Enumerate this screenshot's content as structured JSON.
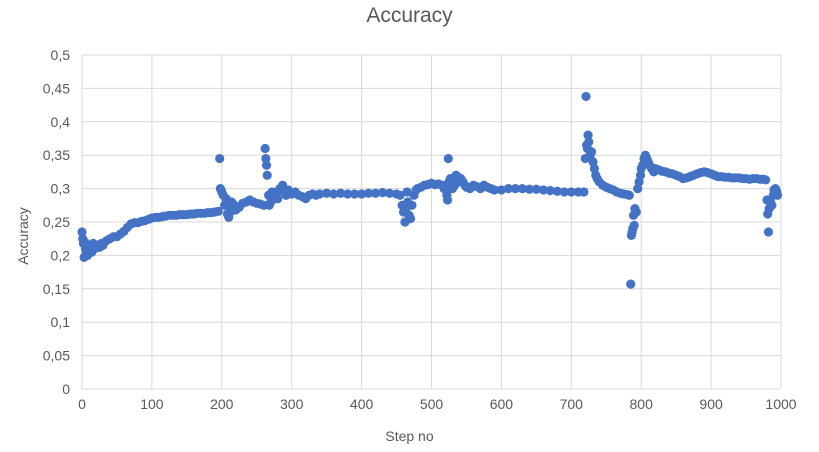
{
  "chart_data": {
    "type": "scatter",
    "title": "Accuracy",
    "xlabel": "Step no",
    "ylabel": "Accuracy",
    "xlim": [
      0,
      1000
    ],
    "ylim": [
      0,
      0.5
    ],
    "x_ticks": [
      "0",
      "100",
      "200",
      "300",
      "400",
      "500",
      "600",
      "700",
      "800",
      "900",
      "1000"
    ],
    "y_ticks": [
      "0",
      "0,05",
      "0,1",
      "0,15",
      "0,2",
      "0,25",
      "0,3",
      "0,35",
      "0,4",
      "0,45",
      "0,5"
    ],
    "grid": true,
    "legend": "none",
    "series": [
      {
        "color": "#4472C4",
        "points": [
          [
            0,
            0.235
          ],
          [
            1,
            0.225
          ],
          [
            2,
            0.218
          ],
          [
            3,
            0.197
          ],
          [
            4,
            0.22
          ],
          [
            5,
            0.21
          ],
          [
            6,
            0.205
          ],
          [
            7,
            0.215
          ],
          [
            8,
            0.2
          ],
          [
            9,
            0.212
          ],
          [
            10,
            0.208
          ],
          [
            12,
            0.215
          ],
          [
            14,
            0.205
          ],
          [
            16,
            0.218
          ],
          [
            18,
            0.21
          ],
          [
            20,
            0.212
          ],
          [
            22,
            0.215
          ],
          [
            25,
            0.212
          ],
          [
            28,
            0.218
          ],
          [
            30,
            0.215
          ],
          [
            35,
            0.222
          ],
          [
            40,
            0.225
          ],
          [
            45,
            0.228
          ],
          [
            50,
            0.228
          ],
          [
            55,
            0.232
          ],
          [
            60,
            0.236
          ],
          [
            65,
            0.242
          ],
          [
            70,
            0.247
          ],
          [
            75,
            0.249
          ],
          [
            80,
            0.249
          ],
          [
            85,
            0.251
          ],
          [
            90,
            0.252
          ],
          [
            95,
            0.254
          ],
          [
            100,
            0.256
          ],
          [
            105,
            0.257
          ],
          [
            110,
            0.257
          ],
          [
            115,
            0.258
          ],
          [
            120,
            0.259
          ],
          [
            125,
            0.26
          ],
          [
            130,
            0.26
          ],
          [
            135,
            0.26
          ],
          [
            140,
            0.261
          ],
          [
            145,
            0.261
          ],
          [
            150,
            0.261
          ],
          [
            155,
            0.262
          ],
          [
            160,
            0.262
          ],
          [
            165,
            0.263
          ],
          [
            170,
            0.263
          ],
          [
            175,
            0.263
          ],
          [
            180,
            0.264
          ],
          [
            185,
            0.264
          ],
          [
            190,
            0.265
          ],
          [
            195,
            0.266
          ],
          [
            197,
            0.345
          ],
          [
            198,
            0.3
          ],
          [
            200,
            0.295
          ],
          [
            202,
            0.29
          ],
          [
            204,
            0.275
          ],
          [
            206,
            0.285
          ],
          [
            208,
            0.262
          ],
          [
            210,
            0.257
          ],
          [
            212,
            0.265
          ],
          [
            214,
            0.28
          ],
          [
            216,
            0.27
          ],
          [
            218,
            0.275
          ],
          [
            220,
            0.268
          ],
          [
            225,
            0.272
          ],
          [
            230,
            0.278
          ],
          [
            235,
            0.28
          ],
          [
            240,
            0.283
          ],
          [
            245,
            0.28
          ],
          [
            250,
            0.278
          ],
          [
            255,
            0.277
          ],
          [
            260,
            0.275
          ],
          [
            262,
            0.36
          ],
          [
            263,
            0.345
          ],
          [
            264,
            0.335
          ],
          [
            265,
            0.32
          ],
          [
            267,
            0.29
          ],
          [
            268,
            0.275
          ],
          [
            270,
            0.28
          ],
          [
            272,
            0.295
          ],
          [
            275,
            0.285
          ],
          [
            278,
            0.29
          ],
          [
            280,
            0.285
          ],
          [
            283,
            0.3
          ],
          [
            285,
            0.298
          ],
          [
            287,
            0.305
          ],
          [
            290,
            0.295
          ],
          [
            292,
            0.29
          ],
          [
            295,
            0.298
          ],
          [
            300,
            0.292
          ],
          [
            305,
            0.295
          ],
          [
            310,
            0.29
          ],
          [
            315,
            0.288
          ],
          [
            320,
            0.285
          ],
          [
            325,
            0.29
          ],
          [
            330,
            0.292
          ],
          [
            335,
            0.29
          ],
          [
            340,
            0.292
          ],
          [
            350,
            0.293
          ],
          [
            360,
            0.292
          ],
          [
            370,
            0.293
          ],
          [
            380,
            0.292
          ],
          [
            390,
            0.292
          ],
          [
            400,
            0.292
          ],
          [
            410,
            0.293
          ],
          [
            420,
            0.293
          ],
          [
            430,
            0.294
          ],
          [
            440,
            0.293
          ],
          [
            450,
            0.292
          ],
          [
            455,
            0.29
          ],
          [
            458,
            0.275
          ],
          [
            460,
            0.265
          ],
          [
            462,
            0.25
          ],
          [
            463,
            0.27
          ],
          [
            465,
            0.295
          ],
          [
            466,
            0.28
          ],
          [
            468,
            0.26
          ],
          [
            470,
            0.255
          ],
          [
            472,
            0.275
          ],
          [
            475,
            0.29
          ],
          [
            478,
            0.298
          ],
          [
            480,
            0.3
          ],
          [
            485,
            0.302
          ],
          [
            490,
            0.305
          ],
          [
            495,
            0.306
          ],
          [
            500,
            0.308
          ],
          [
            505,
            0.306
          ],
          [
            510,
            0.307
          ],
          [
            515,
            0.305
          ],
          [
            518,
            0.3
          ],
          [
            520,
            0.3
          ],
          [
            522,
            0.29
          ],
          [
            523,
            0.283
          ],
          [
            524,
            0.345
          ],
          [
            525,
            0.31
          ],
          [
            527,
            0.315
          ],
          [
            530,
            0.3
          ],
          [
            533,
            0.305
          ],
          [
            535,
            0.32
          ],
          [
            537,
            0.318
          ],
          [
            540,
            0.31
          ],
          [
            542,
            0.315
          ],
          [
            545,
            0.31
          ],
          [
            548,
            0.305
          ],
          [
            550,
            0.302
          ],
          [
            555,
            0.3
          ],
          [
            560,
            0.305
          ],
          [
            565,
            0.303
          ],
          [
            570,
            0.3
          ],
          [
            575,
            0.305
          ],
          [
            580,
            0.302
          ],
          [
            585,
            0.3
          ],
          [
            590,
            0.298
          ],
          [
            600,
            0.298
          ],
          [
            610,
            0.3
          ],
          [
            620,
            0.3
          ],
          [
            630,
            0.3
          ],
          [
            640,
            0.299
          ],
          [
            650,
            0.299
          ],
          [
            660,
            0.298
          ],
          [
            670,
            0.297
          ],
          [
            680,
            0.296
          ],
          [
            690,
            0.295
          ],
          [
            700,
            0.295
          ],
          [
            710,
            0.295
          ],
          [
            718,
            0.295
          ],
          [
            720,
            0.345
          ],
          [
            721,
            0.438
          ],
          [
            722,
            0.365
          ],
          [
            723,
            0.36
          ],
          [
            724,
            0.38
          ],
          [
            725,
            0.37
          ],
          [
            727,
            0.35
          ],
          [
            729,
            0.355
          ],
          [
            731,
            0.34
          ],
          [
            733,
            0.33
          ],
          [
            735,
            0.32
          ],
          [
            737,
            0.315
          ],
          [
            740,
            0.31
          ],
          [
            745,
            0.305
          ],
          [
            750,
            0.302
          ],
          [
            755,
            0.3
          ],
          [
            760,
            0.298
          ],
          [
            765,
            0.295
          ],
          [
            770,
            0.293
          ],
          [
            775,
            0.292
          ],
          [
            780,
            0.291
          ],
          [
            783,
            0.29
          ],
          [
            785,
            0.157
          ],
          [
            786,
            0.23
          ],
          [
            787,
            0.235
          ],
          [
            788,
            0.24
          ],
          [
            789,
            0.26
          ],
          [
            790,
            0.245
          ],
          [
            791,
            0.27
          ],
          [
            793,
            0.265
          ],
          [
            795,
            0.3
          ],
          [
            797,
            0.31
          ],
          [
            799,
            0.32
          ],
          [
            800,
            0.33
          ],
          [
            802,
            0.335
          ],
          [
            804,
            0.345
          ],
          [
            806,
            0.35
          ],
          [
            808,
            0.345
          ],
          [
            810,
            0.34
          ],
          [
            812,
            0.335
          ],
          [
            815,
            0.33
          ],
          [
            818,
            0.325
          ],
          [
            820,
            0.33
          ],
          [
            825,
            0.328
          ],
          [
            830,
            0.326
          ],
          [
            835,
            0.325
          ],
          [
            840,
            0.323
          ],
          [
            845,
            0.322
          ],
          [
            850,
            0.32
          ],
          [
            855,
            0.318
          ],
          [
            860,
            0.315
          ],
          [
            865,
            0.316
          ],
          [
            870,
            0.318
          ],
          [
            875,
            0.32
          ],
          [
            880,
            0.322
          ],
          [
            885,
            0.324
          ],
          [
            890,
            0.325
          ],
          [
            895,
            0.324
          ],
          [
            900,
            0.322
          ],
          [
            905,
            0.32
          ],
          [
            910,
            0.318
          ],
          [
            915,
            0.318
          ],
          [
            920,
            0.317
          ],
          [
            925,
            0.317
          ],
          [
            930,
            0.316
          ],
          [
            935,
            0.316
          ],
          [
            940,
            0.316
          ],
          [
            945,
            0.315
          ],
          [
            950,
            0.315
          ],
          [
            955,
            0.314
          ],
          [
            960,
            0.315
          ],
          [
            965,
            0.315
          ],
          [
            970,
            0.314
          ],
          [
            975,
            0.314
          ],
          [
            978,
            0.313
          ],
          [
            980,
            0.283
          ],
          [
            981,
            0.262
          ],
          [
            982,
            0.235
          ],
          [
            983,
            0.27
          ],
          [
            985,
            0.28
          ],
          [
            987,
            0.275
          ],
          [
            989,
            0.29
          ],
          [
            990,
            0.298
          ],
          [
            992,
            0.3
          ],
          [
            994,
            0.295
          ],
          [
            995,
            0.29
          ]
        ]
      }
    ]
  }
}
